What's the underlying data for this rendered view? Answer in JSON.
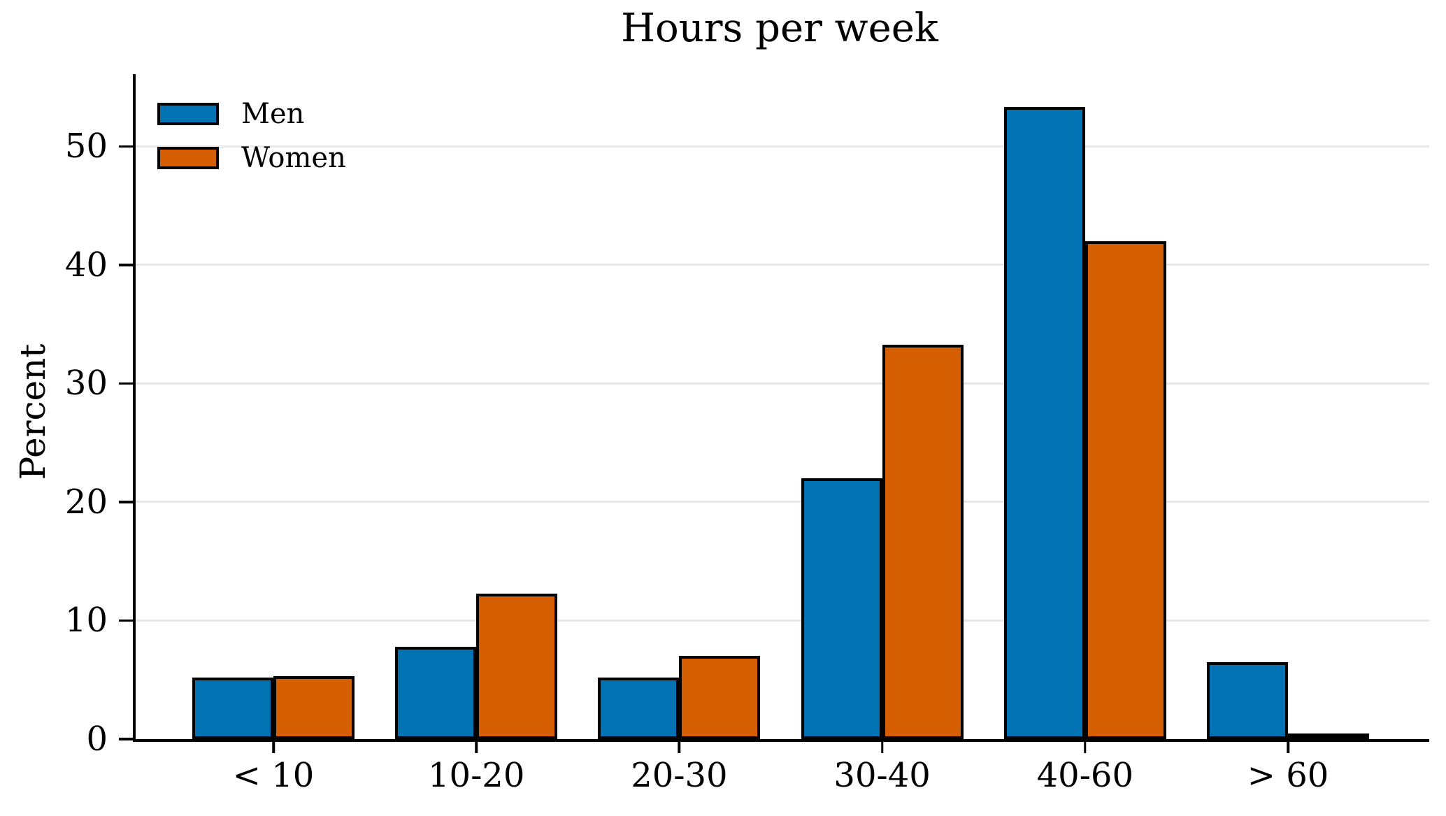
{
  "chart_data": {
    "type": "bar",
    "title": "Hours per week",
    "xlabel": "",
    "ylabel": "Percent",
    "categories": [
      "< 10",
      "10-20",
      "20-30",
      "30-40",
      "40-60",
      "> 60"
    ],
    "series": [
      {
        "name": "Men",
        "color": "#0173b2",
        "values": [
          5.2,
          7.8,
          5.2,
          22.0,
          53.3,
          6.5
        ]
      },
      {
        "name": "Women",
        "color": "#d55e00",
        "values": [
          5.3,
          12.3,
          7.0,
          33.3,
          42.0,
          0.1
        ]
      }
    ],
    "yticks": [
      0,
      10,
      20,
      30,
      40,
      50
    ],
    "ylim": [
      0,
      56.1
    ],
    "grid": "horizontal-only",
    "gridline_color": "#e8e8e8",
    "bar_edge_color": "#000000",
    "legend_position": "upper-left",
    "background_color": "#ffffff",
    "text_color": "#000000"
  }
}
